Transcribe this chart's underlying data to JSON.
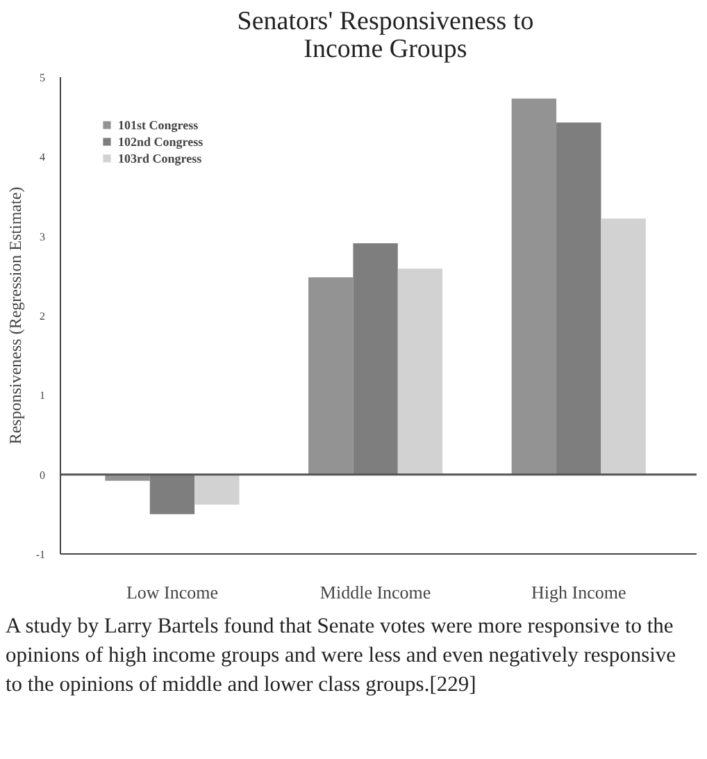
{
  "chart_data": {
    "type": "bar",
    "title": "Senators' Responsiveness to Income Groups",
    "ylabel": "Responsiveness (Regression Estimate)",
    "categories": [
      "Low Income",
      "Middle Income",
      "High Income"
    ],
    "series": [
      {
        "name": "101st Congress",
        "color": "#939393",
        "values": [
          -0.08,
          2.48,
          4.73
        ]
      },
      {
        "name": "102nd Congress",
        "color": "#7e7e7e",
        "values": [
          -0.5,
          2.91,
          4.43
        ]
      },
      {
        "name": "103rd Congress",
        "color": "#d2d2d2",
        "values": [
          -0.38,
          2.59,
          3.22
        ]
      }
    ],
    "ylim": [
      -1,
      5
    ],
    "yticks": [
      -1,
      0,
      1,
      2,
      3,
      4,
      5
    ],
    "ref_lines": [
      {
        "axis": "y",
        "value": 0,
        "label": null,
        "color": "#555555"
      }
    ],
    "grid": false,
    "legend": "top left",
    "annotations": [
      "A study by Larry Bartels found that Senate votes were more responsive to the opinions of high income groups and were less and even negatively responsive to the opinions of middle and lower class groups.[229]"
    ]
  }
}
